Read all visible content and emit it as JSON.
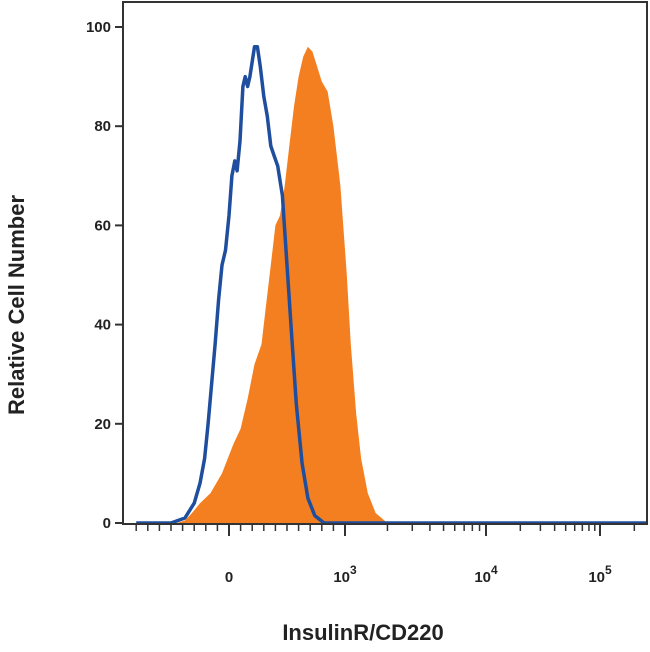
{
  "chart_data": {
    "type": "area",
    "title": "",
    "xlabel": "InsulinR/CD220",
    "ylabel": "Relative Cell Number",
    "x_scale": "biexponential",
    "ylim": [
      0,
      100
    ],
    "y_ticks": [
      0,
      20,
      40,
      60,
      80,
      100
    ],
    "x_ticks": [
      {
        "value": 0,
        "base": "0",
        "exp": ""
      },
      {
        "value": 1000,
        "base": "10",
        "exp": "3"
      },
      {
        "value": 10000,
        "base": "10",
        "exp": "4"
      },
      {
        "value": 100000,
        "base": "10",
        "exp": "5"
      }
    ],
    "grid": false,
    "legend": "none",
    "series": [
      {
        "style": "outline",
        "color": "#1f4e9e",
        "points": [
          [
            -800,
            0
          ],
          [
            -500,
            0
          ],
          [
            -380,
            1
          ],
          [
            -300,
            4
          ],
          [
            -250,
            8
          ],
          [
            -210,
            13
          ],
          [
            -180,
            20
          ],
          [
            -150,
            28
          ],
          [
            -120,
            36
          ],
          [
            -90,
            45
          ],
          [
            -60,
            52
          ],
          [
            -30,
            55
          ],
          [
            0,
            62
          ],
          [
            25,
            70
          ],
          [
            50,
            73
          ],
          [
            70,
            71
          ],
          [
            95,
            77
          ],
          [
            120,
            88
          ],
          [
            140,
            90
          ],
          [
            160,
            88
          ],
          [
            180,
            90
          ],
          [
            200,
            93
          ],
          [
            220,
            96
          ],
          [
            245,
            96
          ],
          [
            270,
            92
          ],
          [
            300,
            86
          ],
          [
            330,
            82
          ],
          [
            360,
            76
          ],
          [
            390,
            74
          ],
          [
            420,
            72
          ],
          [
            460,
            66
          ],
          [
            500,
            52
          ],
          [
            540,
            38
          ],
          [
            580,
            24
          ],
          [
            630,
            12
          ],
          [
            680,
            5
          ],
          [
            740,
            1.5
          ],
          [
            820,
            0
          ],
          [
            2000,
            0
          ],
          [
            300000,
            0
          ]
        ]
      },
      {
        "style": "filled",
        "color": "#f37f20",
        "points": [
          [
            -450,
            0
          ],
          [
            -380,
            0.5
          ],
          [
            -320,
            2
          ],
          [
            -250,
            4
          ],
          [
            -160,
            6
          ],
          [
            -60,
            10
          ],
          [
            40,
            16
          ],
          [
            100,
            19
          ],
          [
            160,
            25
          ],
          [
            220,
            32
          ],
          [
            280,
            36
          ],
          [
            320,
            44
          ],
          [
            360,
            52
          ],
          [
            400,
            60
          ],
          [
            440,
            62
          ],
          [
            480,
            68
          ],
          [
            520,
            76
          ],
          [
            560,
            84
          ],
          [
            600,
            90
          ],
          [
            640,
            94
          ],
          [
            680,
            96
          ],
          [
            720,
            95
          ],
          [
            760,
            92
          ],
          [
            800,
            89
          ],
          [
            850,
            87
          ],
          [
            900,
            80
          ],
          [
            960,
            68
          ],
          [
            1030,
            50
          ],
          [
            1100,
            36
          ],
          [
            1200,
            22
          ],
          [
            1300,
            13
          ],
          [
            1450,
            6
          ],
          [
            1650,
            2
          ],
          [
            2000,
            0
          ]
        ]
      }
    ]
  }
}
